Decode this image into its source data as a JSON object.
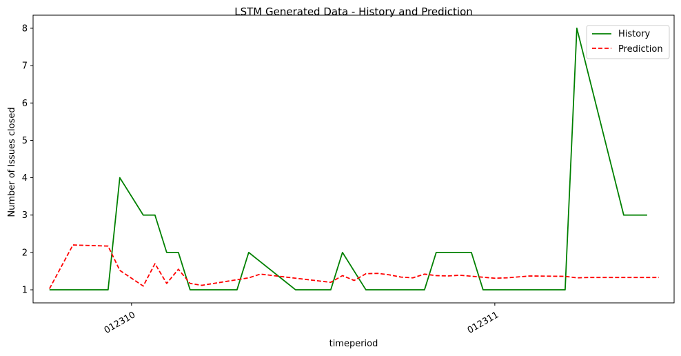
{
  "chart_data": {
    "type": "line",
    "title": "LSTM Generated Data - History and Prediction",
    "xlabel": "timeperiod",
    "ylabel": "Number of Issues closed",
    "ylim": [
      0.65,
      8.35
    ],
    "yticks": [
      1,
      2,
      3,
      4,
      5,
      6,
      7,
      8
    ],
    "xlim": [
      -1.4,
      53.3
    ],
    "xticks": [
      {
        "x": 7,
        "label": "012310"
      },
      {
        "x": 38,
        "label": "012311"
      }
    ],
    "grid": false,
    "legend_position": "top-right",
    "series": [
      {
        "name": "History",
        "color": "#008000",
        "dash": "solid",
        "points": [
          [
            0,
            1
          ],
          [
            1,
            1
          ],
          [
            2,
            1
          ],
          [
            3,
            1
          ],
          [
            4,
            1
          ],
          [
            5,
            1
          ],
          [
            6,
            4
          ],
          [
            7,
            3.5
          ],
          [
            8,
            3
          ],
          [
            9,
            3
          ],
          [
            10,
            2
          ],
          [
            11,
            2
          ],
          [
            12,
            1
          ],
          [
            13,
            1
          ],
          [
            14,
            1
          ],
          [
            15,
            1
          ],
          [
            16,
            1
          ],
          [
            17,
            2
          ],
          [
            18,
            1.75
          ],
          [
            19,
            1.5
          ],
          [
            20,
            1.25
          ],
          [
            21,
            1
          ],
          [
            22,
            1
          ],
          [
            23,
            1
          ],
          [
            24,
            1
          ],
          [
            25,
            2
          ],
          [
            26,
            1.5
          ],
          [
            27,
            1
          ],
          [
            28,
            1
          ],
          [
            29,
            1
          ],
          [
            30,
            1
          ],
          [
            31,
            1
          ],
          [
            32,
            1
          ],
          [
            33,
            2
          ],
          [
            34,
            2
          ],
          [
            35,
            2
          ],
          [
            36,
            2
          ],
          [
            37,
            1
          ],
          [
            38,
            1
          ],
          [
            39,
            1
          ],
          [
            40,
            1
          ],
          [
            41,
            1
          ],
          [
            42,
            1
          ],
          [
            43,
            1
          ],
          [
            44,
            1
          ],
          [
            45,
            8
          ],
          [
            46,
            6.75
          ],
          [
            47,
            5.5
          ],
          [
            48,
            4.25
          ],
          [
            49,
            3
          ],
          [
            50,
            3
          ],
          [
            51,
            3
          ]
        ]
      },
      {
        "name": "Prediction",
        "color": "#ff0000",
        "dash": "dashed",
        "points": [
          [
            0,
            1.03
          ],
          [
            2,
            2.2
          ],
          [
            5,
            2.17
          ],
          [
            6,
            1.52
          ],
          [
            8,
            1.1
          ],
          [
            9,
            1.7
          ],
          [
            10,
            1.17
          ],
          [
            11,
            1.55
          ],
          [
            12,
            1.17
          ],
          [
            13,
            1.12
          ],
          [
            17,
            1.32
          ],
          [
            18,
            1.42
          ],
          [
            24,
            1.2
          ],
          [
            25,
            1.38
          ],
          [
            26,
            1.25
          ],
          [
            27,
            1.43
          ],
          [
            28,
            1.44
          ],
          [
            29,
            1.4
          ],
          [
            30,
            1.34
          ],
          [
            31,
            1.32
          ],
          [
            32,
            1.42
          ],
          [
            33,
            1.38
          ],
          [
            34,
            1.37
          ],
          [
            35,
            1.39
          ],
          [
            38,
            1.31
          ],
          [
            39,
            1.32
          ],
          [
            41,
            1.37
          ],
          [
            44,
            1.36
          ],
          [
            45,
            1.32
          ],
          [
            46,
            1.33
          ],
          [
            51,
            1.33
          ],
          [
            52,
            1.33
          ]
        ]
      }
    ]
  }
}
